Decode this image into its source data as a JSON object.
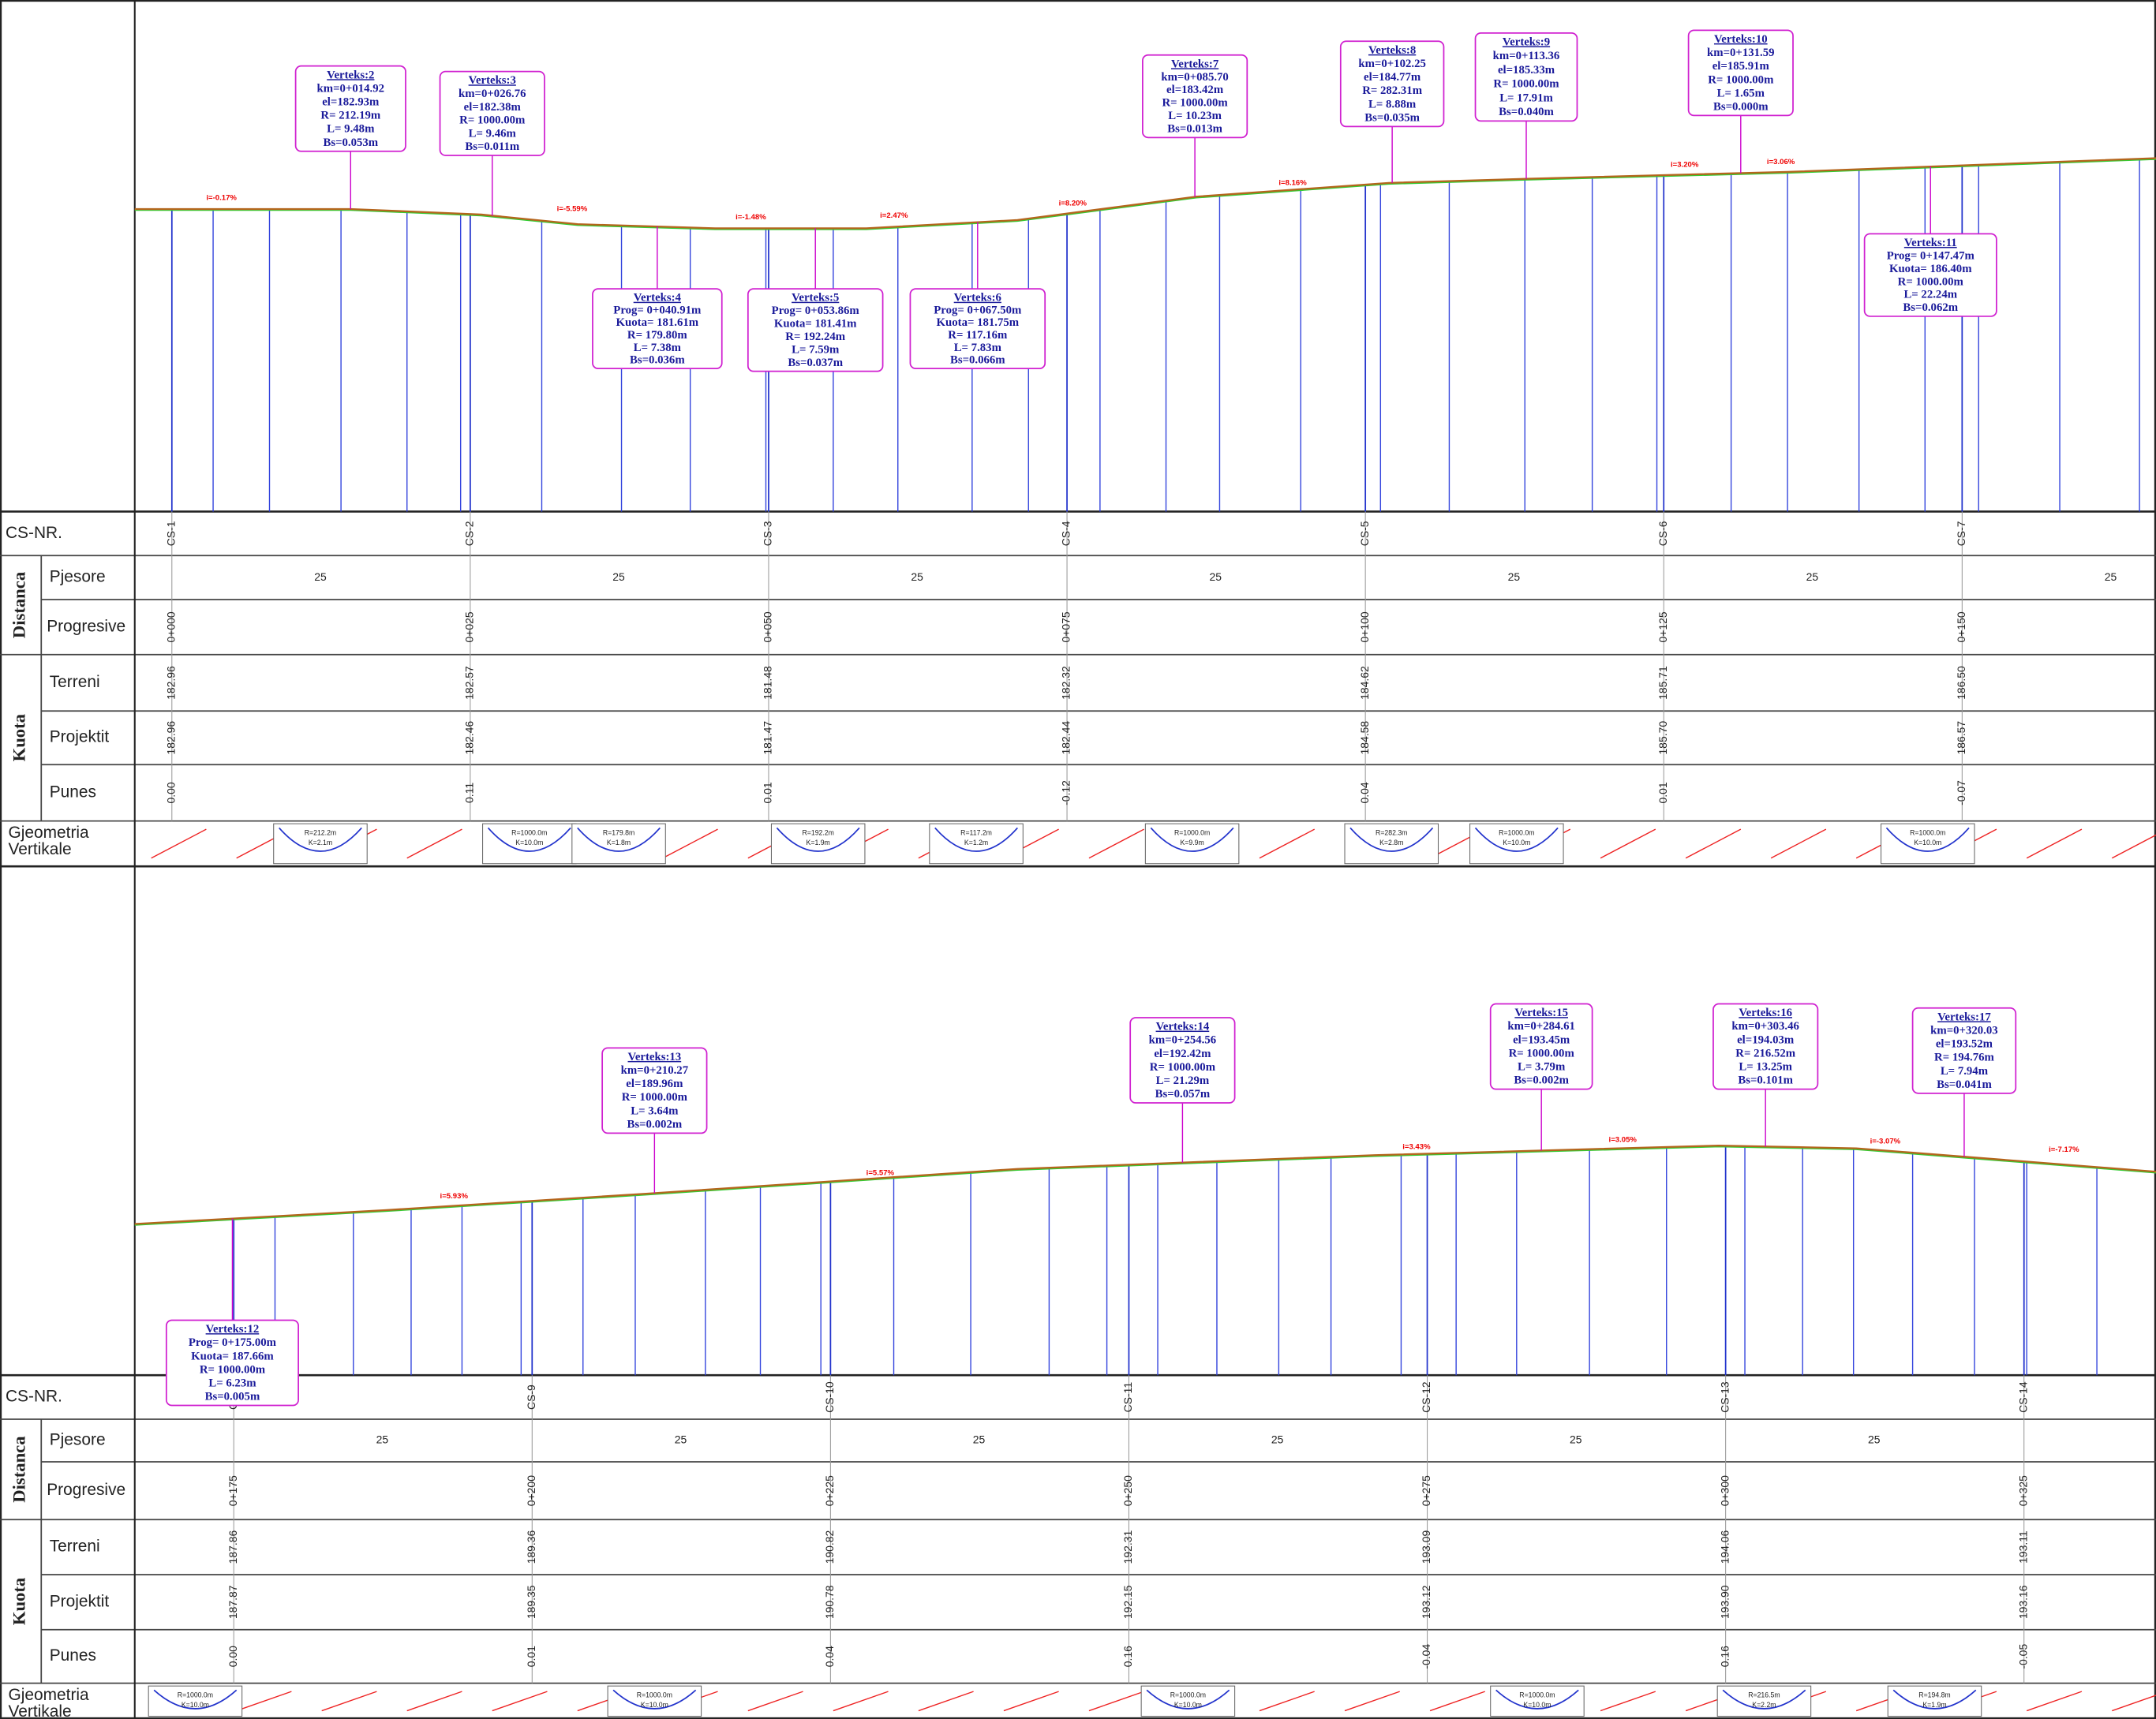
{
  "labels": {
    "cs_nr": "CS-NR.",
    "distanca": "Distanca",
    "pjesore": "Pjesore",
    "progresive": "Progresive",
    "kuota": "Kuota",
    "terreni": "Terreni",
    "projektit": "Projektit",
    "punes": "Punes",
    "gjeometria": "Gjeometria",
    "vertikale": "Vertikale"
  },
  "panels": [
    {
      "cs": [
        "CS-1",
        "CS-2",
        "CS-3",
        "CS-4",
        "CS-5",
        "CS-6",
        "CS-7"
      ],
      "pjesore": [
        "25",
        "25",
        "25",
        "25",
        "25",
        "25",
        "25"
      ],
      "progresive": [
        "0+000",
        "0+025",
        "0+050",
        "0+075",
        "0+100",
        "0+125",
        "0+150"
      ],
      "terreni": [
        "182.96",
        "182.57",
        "181.48",
        "182.32",
        "184.62",
        "185.71",
        "186.50"
      ],
      "projektit": [
        "182.96",
        "182.46",
        "181.47",
        "182.44",
        "184.58",
        "185.70",
        "186.57"
      ],
      "punes": [
        "0.00",
        "0.11",
        "0.01",
        "-0.12",
        "0.04",
        "0.01",
        "-0.07"
      ],
      "grades": [
        "i=-0.17%",
        "i=-5.59%",
        "i=-1.48%",
        "i=2.47%",
        "i=8.20%",
        "i=8.16%",
        "i=3.20%",
        "i=3.06%"
      ],
      "vertices": [
        {
          "lines": [
            "Verteks:2",
            "km=0+014.92",
            "el=182.93m",
            "R= 212.19m",
            "L= 9.48m",
            "Bs=0.053m"
          ]
        },
        {
          "lines": [
            "Verteks:3",
            "km=0+026.76",
            "el=182.38m",
            "R= 1000.00m",
            "L= 9.46m",
            "Bs=0.011m"
          ]
        },
        {
          "lines": [
            "Verteks:4",
            "Prog= 0+040.91m",
            "Kuota= 181.61m",
            "R= 179.80m",
            "L= 7.38m",
            "Bs=0.036m"
          ]
        },
        {
          "lines": [
            "Verteks:5",
            "Prog= 0+053.86m",
            "Kuota= 181.41m",
            "R= 192.24m",
            "L= 7.59m",
            "Bs=0.037m"
          ]
        },
        {
          "lines": [
            "Verteks:6",
            "Prog= 0+067.50m",
            "Kuota= 181.75m",
            "R= 117.16m",
            "L= 7.83m",
            "Bs=0.066m"
          ]
        },
        {
          "lines": [
            "Verteks:7",
            "km=0+085.70",
            "el=183.42m",
            "R= 1000.00m",
            "L= 10.23m",
            "Bs=0.013m"
          ]
        },
        {
          "lines": [
            "Verteks:8",
            "km=0+102.25",
            "el=184.77m",
            "R= 282.31m",
            "L= 8.88m",
            "Bs=0.035m"
          ]
        },
        {
          "lines": [
            "Verteks:9",
            "km=0+113.36",
            "el=185.33m",
            "R= 1000.00m",
            "L= 17.91m",
            "Bs=0.040m"
          ]
        },
        {
          "lines": [
            "Verteks:10",
            "km=0+131.59",
            "el=185.91m",
            "R= 1000.00m",
            "L= 1.65m",
            "Bs=0.000m"
          ]
        },
        {
          "lines": [
            "Verteks:11",
            "Prog= 0+147.47m",
            "Kuota= 186.40m",
            "R= 1000.00m",
            "L= 22.24m",
            "Bs=0.062m"
          ]
        }
      ],
      "geometry": [
        {
          "lines": [
            "R=212.2m",
            "K=2.1m"
          ]
        },
        {
          "lines": [
            "R=1000.0m",
            "K=10.0m"
          ]
        },
        {
          "lines": [
            "R=179.8m",
            "K=1.8m"
          ]
        },
        {
          "lines": [
            "R=192.2m",
            "K=1.9m"
          ]
        },
        {
          "lines": [
            "R=117.2m",
            "K=1.2m"
          ]
        },
        {
          "lines": [
            "R=1000.0m",
            "K=9.9m"
          ]
        },
        {
          "lines": [
            "R=282.3m",
            "K=2.8m"
          ]
        },
        {
          "lines": [
            "R=1000.0m",
            "K=10.0m"
          ]
        },
        {
          "lines": [
            "R=1000.0m",
            "K=10.0m"
          ]
        }
      ]
    },
    {
      "cs": [
        "CS-8",
        "CS-9",
        "CS-10",
        "CS-11",
        "CS-12",
        "CS-13",
        "CS-14"
      ],
      "pjesore": [
        "25",
        "25",
        "25",
        "25",
        "25",
        "25"
      ],
      "progresive": [
        "0+175",
        "0+200",
        "0+225",
        "0+250",
        "0+275",
        "0+300",
        "0+325"
      ],
      "terreni": [
        "187.86",
        "189.36",
        "190.82",
        "192.31",
        "193.09",
        "194.06",
        "193.11"
      ],
      "projektit": [
        "187.87",
        "189.35",
        "190.78",
        "192.15",
        "193.12",
        "193.90",
        "193.16"
      ],
      "punes": [
        "0.00",
        "0.01",
        "0.04",
        "0.16",
        "-0.04",
        "0.16",
        "-0.05"
      ],
      "grades": [
        "i=5.93%",
        "i=5.57%",
        "i=3.43%",
        "i=3.05%",
        "i=-3.07%",
        "i=-7.17%"
      ],
      "vertices": [
        {
          "lines": [
            "Verteks:12",
            "Prog= 0+175.00m",
            "Kuota= 187.66m",
            "R= 1000.00m",
            "L= 6.23m",
            "Bs=0.005m"
          ]
        },
        {
          "lines": [
            "Verteks:13",
            "km=0+210.27",
            "el=189.96m",
            "R= 1000.00m",
            "L= 3.64m",
            "Bs=0.002m"
          ]
        },
        {
          "lines": [
            "Verteks:14",
            "km=0+254.56",
            "el=192.42m",
            "R= 1000.00m",
            "L= 21.29m",
            "Bs=0.057m"
          ]
        },
        {
          "lines": [
            "Verteks:15",
            "km=0+284.61",
            "el=193.45m",
            "R= 1000.00m",
            "L= 3.79m",
            "Bs=0.002m"
          ]
        },
        {
          "lines": [
            "Verteks:16",
            "km=0+303.46",
            "el=194.03m",
            "R= 216.52m",
            "L= 13.25m",
            "Bs=0.101m"
          ]
        },
        {
          "lines": [
            "Verteks:17",
            "km=0+320.03",
            "el=193.52m",
            "R= 194.76m",
            "L= 7.94m",
            "Bs=0.041m"
          ]
        }
      ],
      "geometry": [
        {
          "lines": [
            "R=1000.0m",
            "K=10.0m"
          ]
        },
        {
          "lines": [
            "R=1000.0m",
            "K=10.0m"
          ]
        },
        {
          "lines": [
            "R=1000.0m",
            "K=10.0m"
          ]
        },
        {
          "lines": [
            "R=1000.0m",
            "K=10.0m"
          ]
        },
        {
          "lines": [
            "R=216.5m",
            "K=2.2m"
          ]
        },
        {
          "lines": [
            "R=194.8m",
            "K=1.9m"
          ]
        }
      ]
    }
  ]
}
